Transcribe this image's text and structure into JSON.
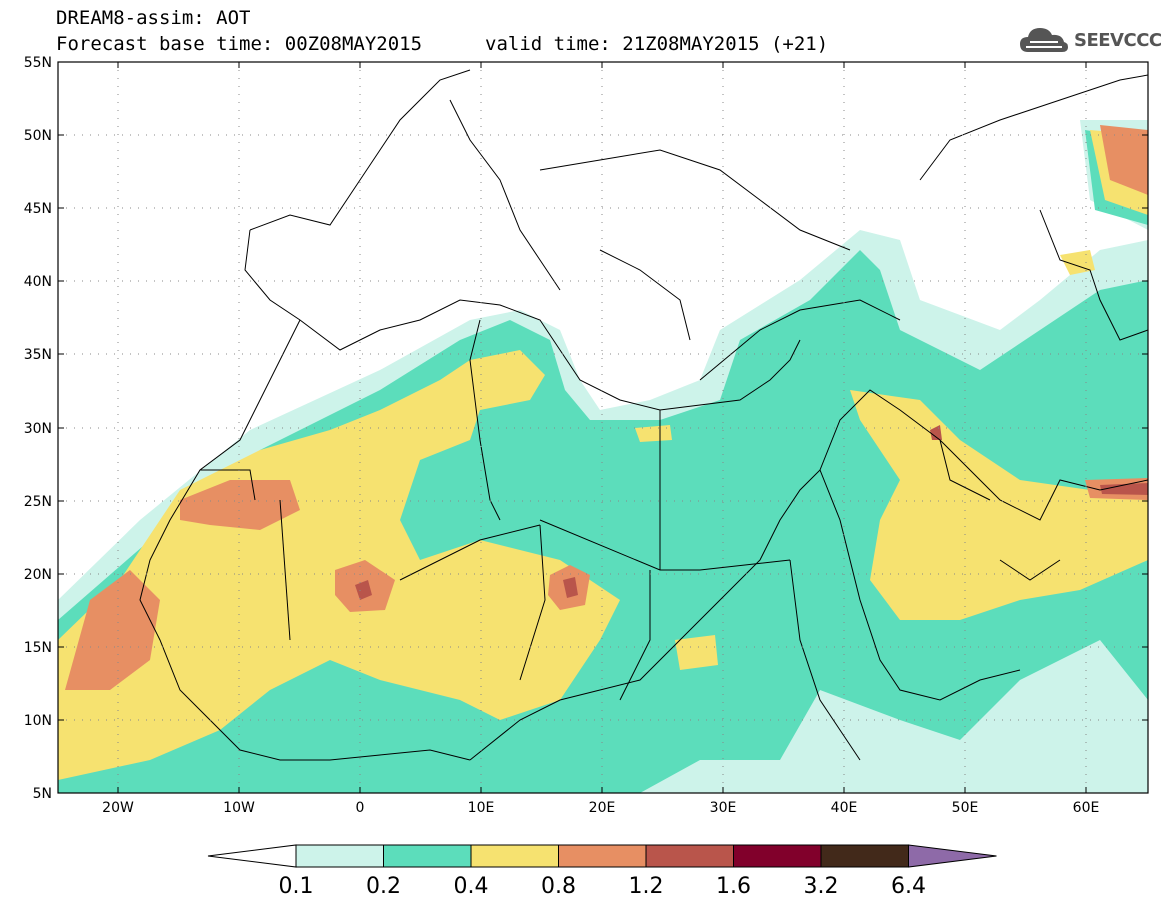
{
  "header": {
    "line1": "DREAM8-assim: AOT",
    "forecast": "Forecast base time: 00Z08MAY2015",
    "valid": "valid time: 21Z08MAY2015 (+21)"
  },
  "logo": {
    "text": "SEEVCCC",
    "icon": "cloud-icon"
  },
  "axes": {
    "lat_labels": [
      "55N",
      "50N",
      "45N",
      "40N",
      "35N",
      "30N",
      "25N",
      "20N",
      "15N",
      "10N",
      "5N"
    ],
    "lon_labels": [
      "20W",
      "10W",
      "0",
      "10E",
      "20E",
      "30E",
      "40E",
      "50E",
      "60E"
    ],
    "lat_range": [
      5,
      55
    ],
    "lon_range": [
      -25,
      65
    ],
    "grid": true
  },
  "colorbar": {
    "colors": [
      "#ffffff",
      "#cdf3ea",
      "#5cddbb",
      "#f6e270",
      "#e78f63",
      "#b9554b",
      "#81002b",
      "#42291a",
      "#8e6aa8"
    ],
    "labels": [
      "0.1",
      "0.2",
      "0.4",
      "0.8",
      "1.2",
      "1.6",
      "3.2",
      "6.4"
    ]
  }
}
